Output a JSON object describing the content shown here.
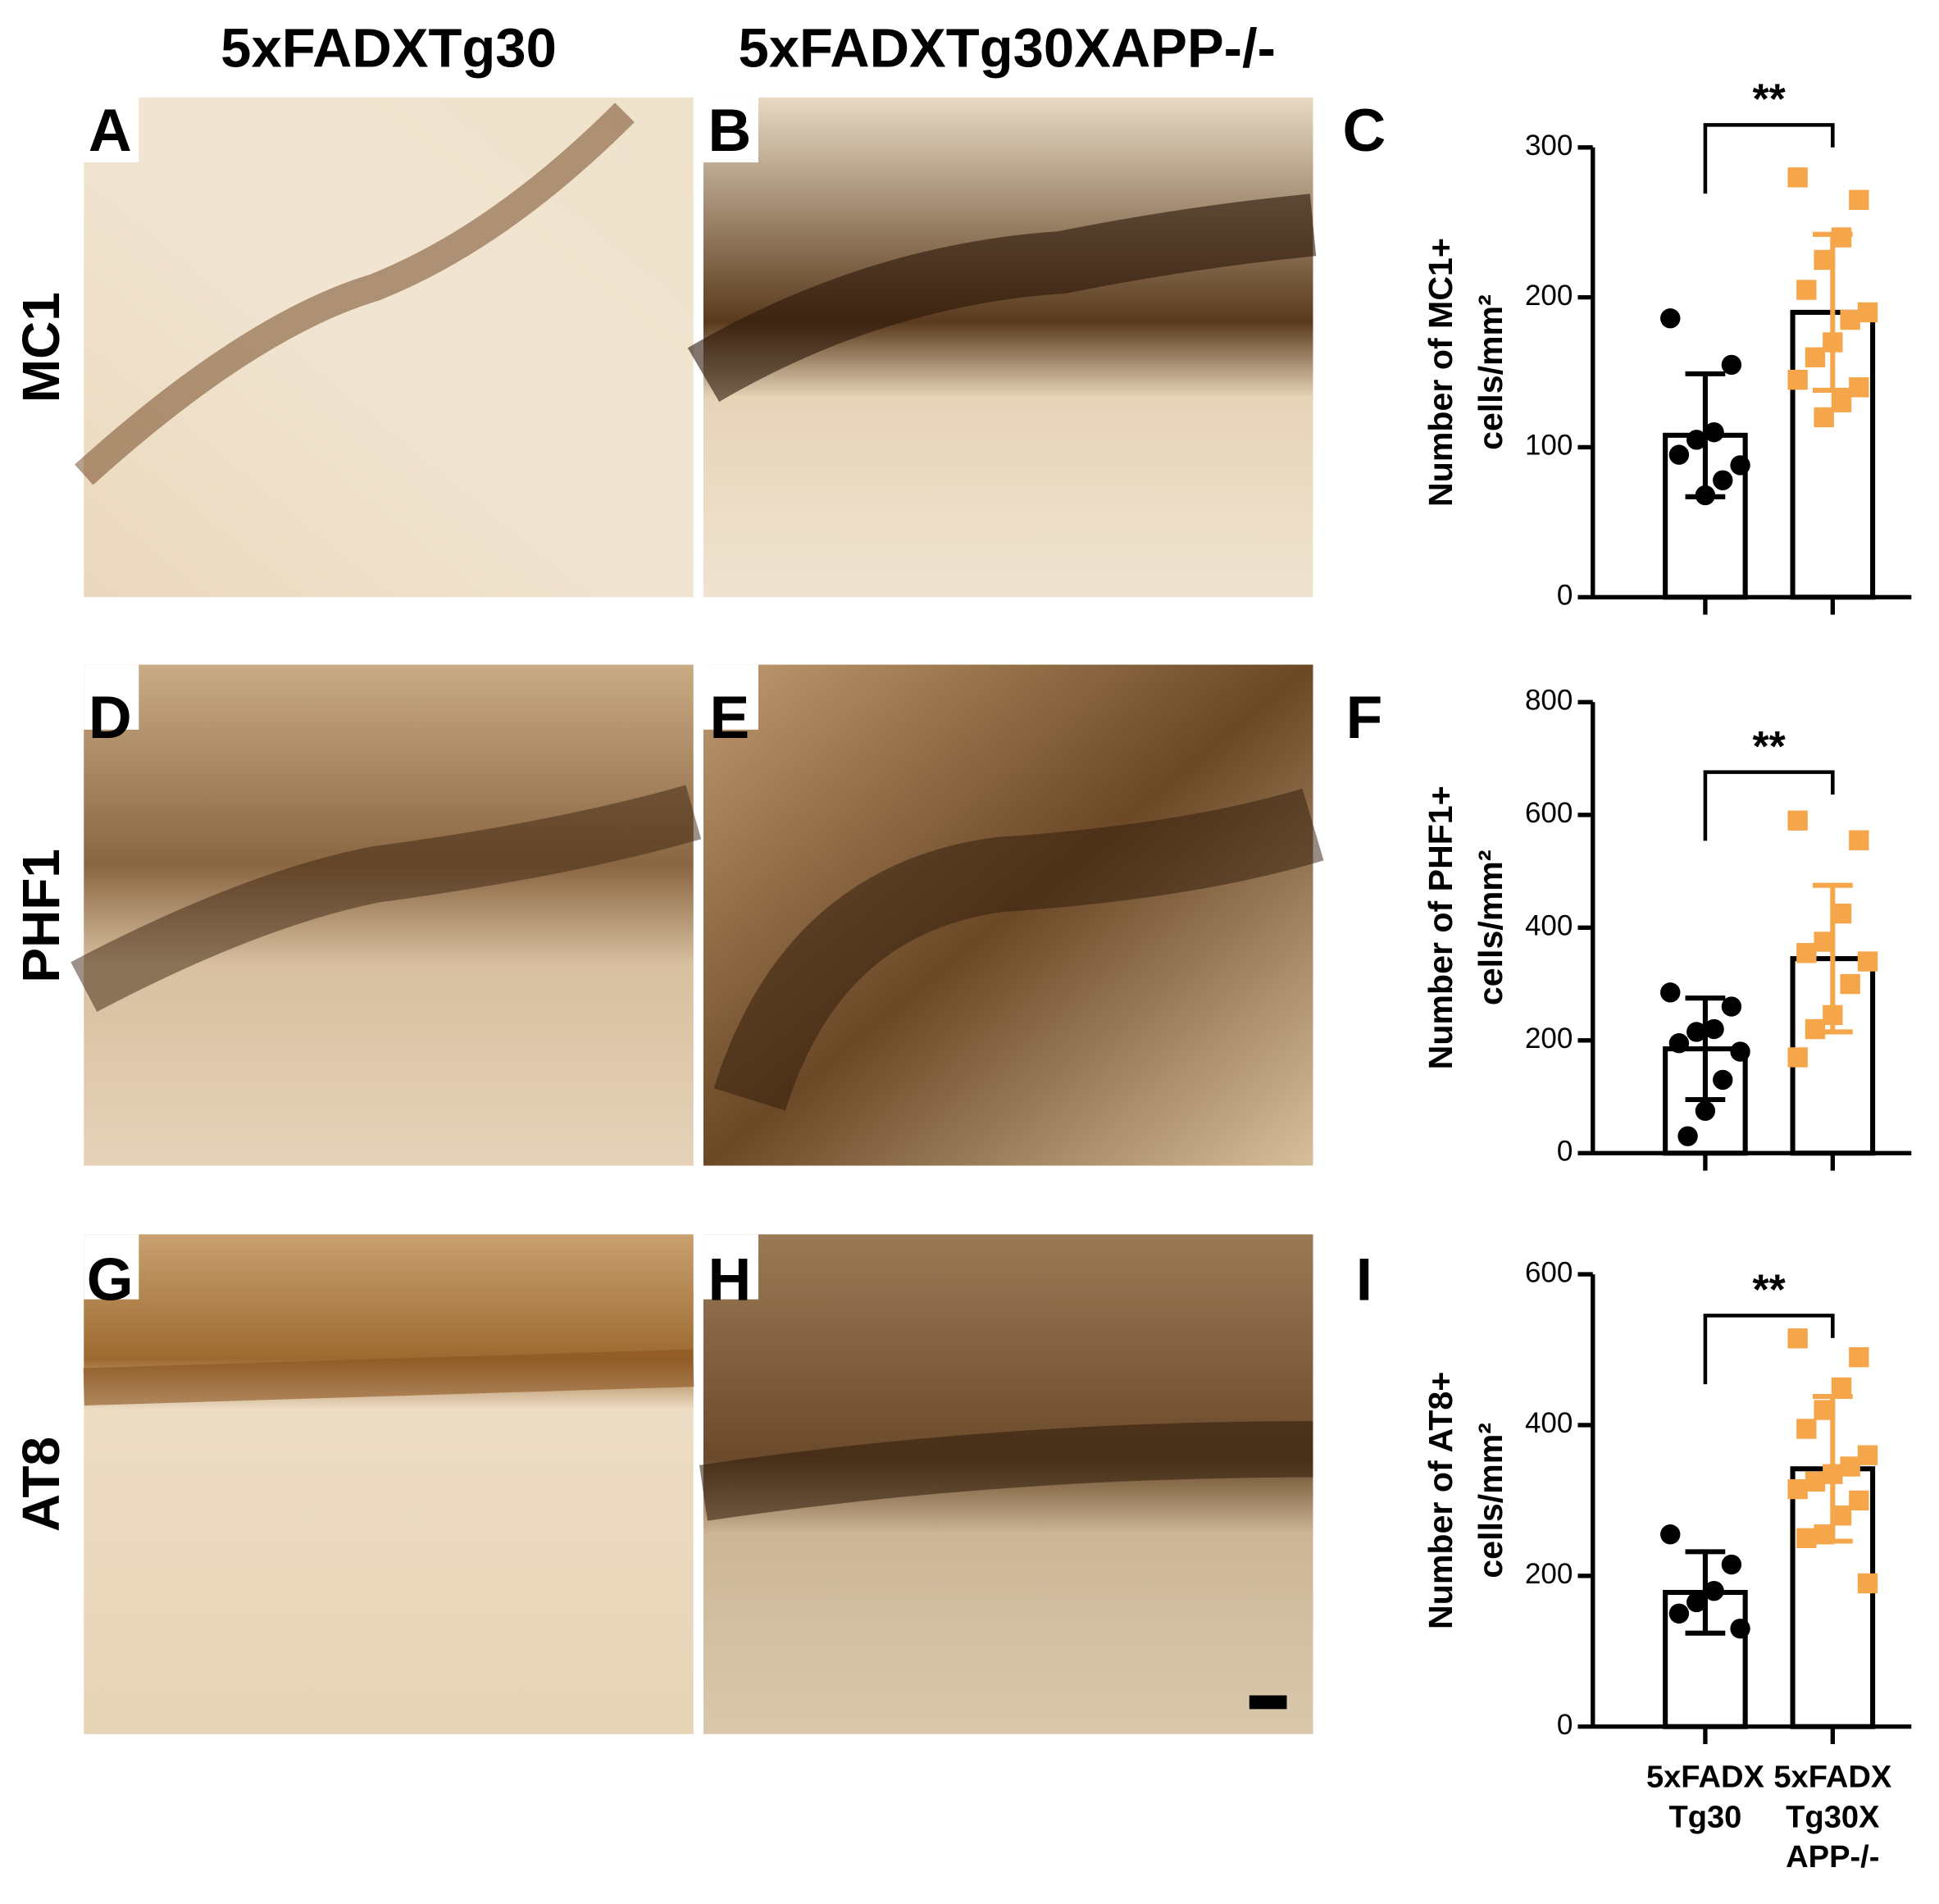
{
  "column_titles": [
    "5xFADXTg30",
    "5xFADXTg30XAPP-/-"
  ],
  "row_labels": [
    "MC1",
    "PHF1",
    "AT8"
  ],
  "panel_letters": [
    "A",
    "B",
    "C",
    "D",
    "E",
    "F",
    "G",
    "H",
    "I"
  ],
  "chart_data": [
    {
      "type": "bar",
      "y_label": "Number of MC1+\ncells/mm²",
      "categories": [
        null,
        null
      ],
      "values": [
        108,
        190
      ],
      "errors": [
        41,
        52
      ],
      "points": [
        [
          186,
          155,
          110,
          105,
          95,
          88,
          78,
          68
        ],
        [
          280,
          265,
          240,
          225,
          205,
          190,
          185,
          170,
          160,
          145,
          140,
          130,
          120
        ]
      ],
      "colors": [
        "#000000",
        "#f5a54a"
      ],
      "significance": "**",
      "ylim": [
        0,
        300
      ],
      "yticks": [
        0,
        100,
        200,
        300
      ]
    },
    {
      "type": "bar",
      "y_label": "Number of PHF1+\ncells/mm²",
      "categories": [
        null,
        null
      ],
      "values": [
        185,
        345
      ],
      "errors": [
        90,
        130
      ],
      "points": [
        [
          285,
          260,
          220,
          215,
          195,
          180,
          130,
          75,
          30
        ],
        [
          590,
          555,
          425,
          375,
          355,
          340,
          300,
          245,
          220,
          170
        ]
      ],
      "colors": [
        "#000000",
        "#f5a54a"
      ],
      "significance": "**",
      "ylim": [
        0,
        800
      ],
      "yticks": [
        0,
        200,
        400,
        600,
        800
      ]
    },
    {
      "type": "bar",
      "y_label": "Number of AT8+\ncells/mm²",
      "categories": [
        "5xFADX\nTg30",
        "5xFADX\nTg30X\nAPP-/-"
      ],
      "values": [
        178,
        342
      ],
      "errors": [
        54,
        96
      ],
      "points": [
        [
          255,
          215,
          180,
          165,
          150,
          130
        ],
        [
          515,
          490,
          450,
          420,
          395,
          360,
          345,
          335,
          325,
          315,
          300,
          280,
          255,
          250,
          190
        ]
      ],
      "colors": [
        "#000000",
        "#f5a54a"
      ],
      "significance": "**",
      "ylim": [
        0,
        600
      ],
      "yticks": [
        0,
        200,
        400,
        600
      ]
    }
  ]
}
